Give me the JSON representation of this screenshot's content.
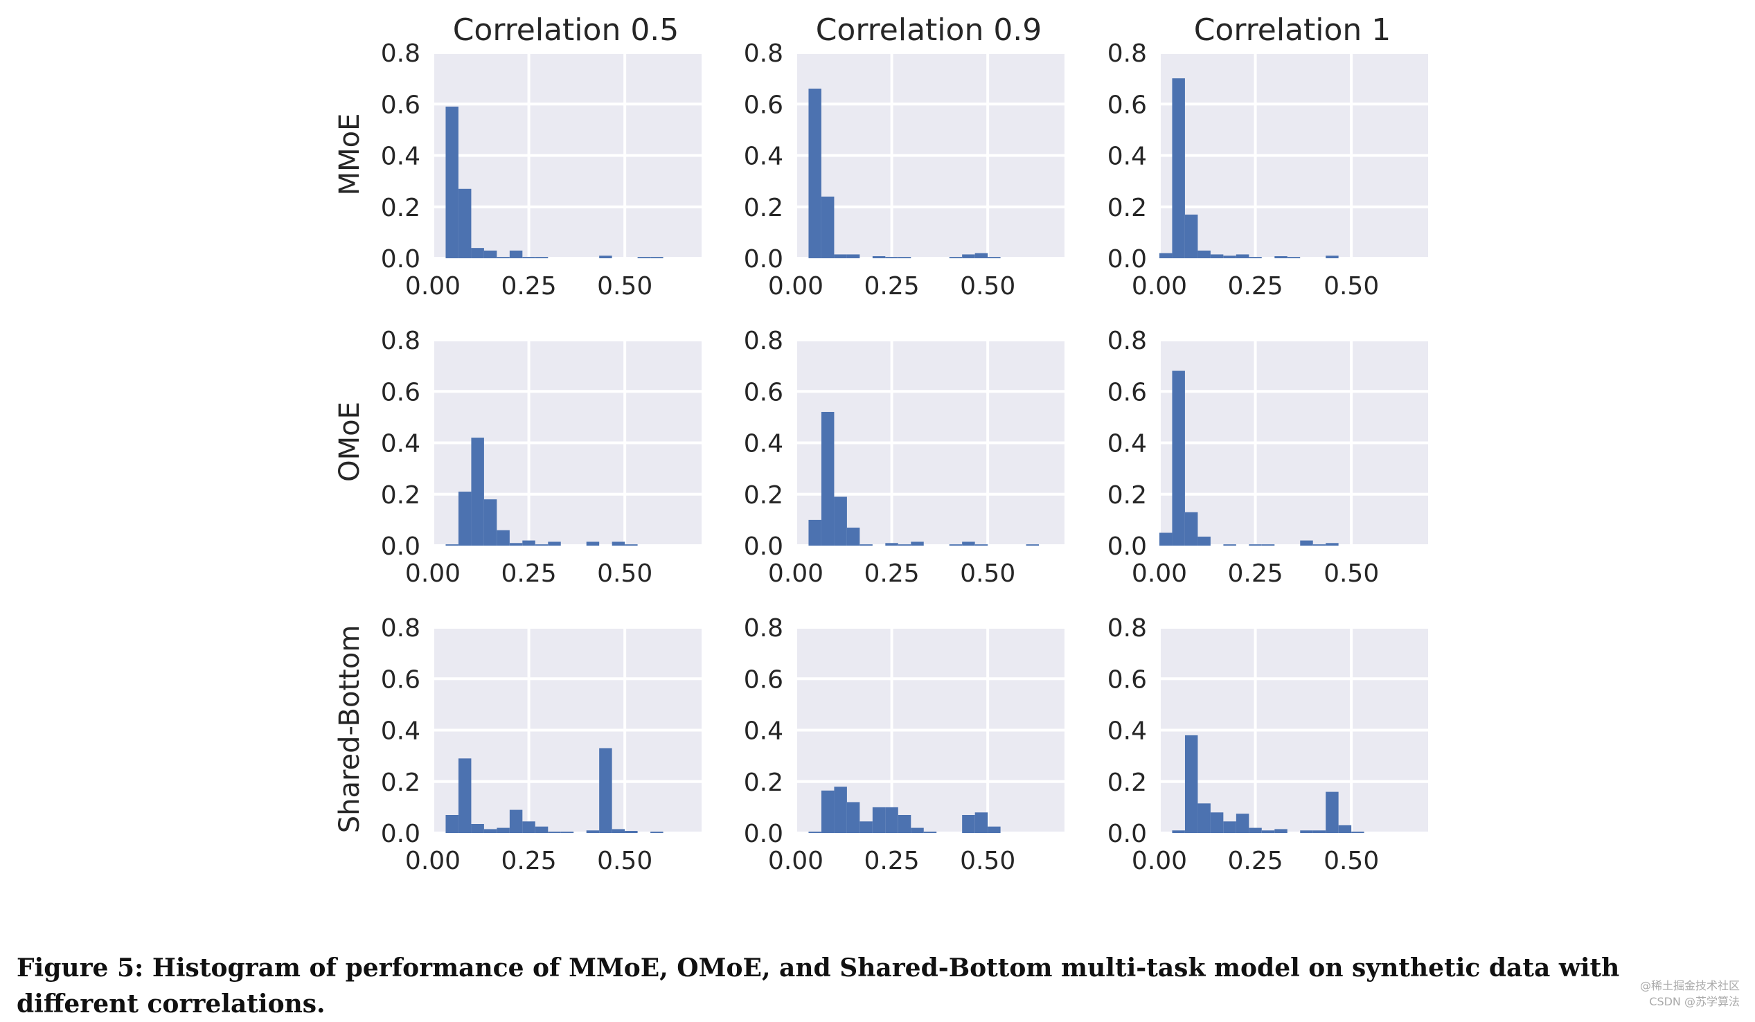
{
  "column_titles": [
    "Correlation 0.5",
    "Correlation 0.9",
    "Correlation 1"
  ],
  "row_labels": [
    "MMoE",
    "OMoE",
    "Shared-Bottom"
  ],
  "caption": "Figure 5: Histogram of performance of MMoE, OMoE, and Shared-Bottom multi-task model on synthetic data with different correlations.",
  "watermark": {
    "line1": "@稀土掘金技术社区",
    "line2": "CSDN @苏学算法"
  },
  "colors": {
    "bar": "#4c72b0",
    "panel_background": "#eaeaf2",
    "grid": "#ffffff",
    "text": "#262626"
  },
  "chart_data": [
    {
      "type": "bar",
      "row": "MMoE",
      "column": "Correlation 0.5",
      "xlim": [
        0,
        0.7
      ],
      "ylim": [
        0,
        0.8
      ],
      "x_ticks": [
        "0.00",
        "0.25",
        "0.50"
      ],
      "y_ticks": [
        "0.0",
        "0.2",
        "0.4",
        "0.6",
        "0.8"
      ],
      "grid": true,
      "bin_width": 0.0333,
      "x": [
        0.0333,
        0.0667,
        0.1,
        0.1333,
        0.1667,
        0.2,
        0.2333,
        0.2667,
        0.3,
        0.3333,
        0.3667,
        0.4,
        0.4333,
        0.4667,
        0.5,
        0.5333,
        0.5667,
        0.6
      ],
      "values": [
        0.59,
        0.27,
        0.04,
        0.03,
        0.005,
        0.03,
        0.005,
        0.005,
        0.0,
        0.0,
        0.0,
        0.0,
        0.01,
        0.0,
        0.0,
        0.005,
        0.005,
        0.0
      ]
    },
    {
      "type": "bar",
      "row": "MMoE",
      "column": "Correlation 0.9",
      "xlim": [
        0,
        0.7
      ],
      "ylim": [
        0,
        0.8
      ],
      "x_ticks": [
        "0.00",
        "0.25",
        "0.50"
      ],
      "y_ticks": [
        "0.0",
        "0.2",
        "0.4",
        "0.6",
        "0.8"
      ],
      "grid": true,
      "bin_width": 0.0333,
      "x": [
        0.0333,
        0.0667,
        0.1,
        0.1333,
        0.1667,
        0.2,
        0.2333,
        0.2667,
        0.3,
        0.3333,
        0.3667,
        0.4,
        0.4333,
        0.4667,
        0.5,
        0.5333
      ],
      "values": [
        0.66,
        0.24,
        0.015,
        0.015,
        0.0,
        0.008,
        0.005,
        0.005,
        0.0,
        0.0,
        0.0,
        0.005,
        0.015,
        0.02,
        0.005,
        0.0
      ]
    },
    {
      "type": "bar",
      "row": "MMoE",
      "column": "Correlation 1",
      "xlim": [
        0,
        0.7
      ],
      "ylim": [
        0,
        0.8
      ],
      "x_ticks": [
        "0.00",
        "0.25",
        "0.50"
      ],
      "y_ticks": [
        "0.0",
        "0.2",
        "0.4",
        "0.6",
        "0.8"
      ],
      "grid": true,
      "bin_width": 0.0333,
      "x": [
        0.0,
        0.0333,
        0.0667,
        0.1,
        0.1333,
        0.1667,
        0.2,
        0.2333,
        0.2667,
        0.3,
        0.3333,
        0.3667,
        0.4,
        0.4333,
        0.4667
      ],
      "values": [
        0.02,
        0.7,
        0.17,
        0.03,
        0.015,
        0.01,
        0.015,
        0.005,
        0.0,
        0.008,
        0.005,
        0.0,
        0.0,
        0.01,
        0.0
      ]
    },
    {
      "type": "bar",
      "row": "OMoE",
      "column": "Correlation 0.5",
      "xlim": [
        0,
        0.7
      ],
      "ylim": [
        0,
        0.8
      ],
      "x_ticks": [
        "0.00",
        "0.25",
        "0.50"
      ],
      "y_ticks": [
        "0.0",
        "0.2",
        "0.4",
        "0.6",
        "0.8"
      ],
      "grid": true,
      "bin_width": 0.0333,
      "x": [
        0.0333,
        0.0667,
        0.1,
        0.1333,
        0.1667,
        0.2,
        0.2333,
        0.2667,
        0.3,
        0.3333,
        0.3667,
        0.4,
        0.4333,
        0.4667,
        0.5,
        0.5333
      ],
      "values": [
        0.005,
        0.21,
        0.42,
        0.18,
        0.06,
        0.01,
        0.02,
        0.005,
        0.015,
        0.0,
        0.0,
        0.015,
        0.0,
        0.015,
        0.005,
        0.0
      ]
    },
    {
      "type": "bar",
      "row": "OMoE",
      "column": "Correlation 0.9",
      "xlim": [
        0,
        0.7
      ],
      "ylim": [
        0,
        0.8
      ],
      "x_ticks": [
        "0.00",
        "0.25",
        "0.50"
      ],
      "y_ticks": [
        "0.0",
        "0.2",
        "0.4",
        "0.6",
        "0.8"
      ],
      "grid": true,
      "bin_width": 0.0333,
      "x": [
        0.0333,
        0.0667,
        0.1,
        0.1333,
        0.1667,
        0.2,
        0.2333,
        0.2667,
        0.3,
        0.3333,
        0.3667,
        0.4,
        0.4333,
        0.4667,
        0.5,
        0.5333,
        0.5667,
        0.6
      ],
      "values": [
        0.1,
        0.52,
        0.19,
        0.07,
        0.005,
        0.0,
        0.01,
        0.005,
        0.015,
        0.0,
        0.0,
        0.005,
        0.015,
        0.005,
        0.0,
        0.0,
        0.0,
        0.005
      ]
    },
    {
      "type": "bar",
      "row": "OMoE",
      "column": "Correlation 1",
      "xlim": [
        0,
        0.7
      ],
      "ylim": [
        0,
        0.8
      ],
      "x_ticks": [
        "0.00",
        "0.25",
        "0.50"
      ],
      "y_ticks": [
        "0.0",
        "0.2",
        "0.4",
        "0.6",
        "0.8"
      ],
      "grid": true,
      "bin_width": 0.0333,
      "x": [
        0.0,
        0.0333,
        0.0667,
        0.1,
        0.1333,
        0.1667,
        0.2,
        0.2333,
        0.2667,
        0.3,
        0.3333,
        0.3667,
        0.4,
        0.4333,
        0.4667
      ],
      "values": [
        0.05,
        0.68,
        0.13,
        0.035,
        0.0,
        0.005,
        0.0,
        0.005,
        0.005,
        0.0,
        0.0,
        0.02,
        0.005,
        0.01,
        0.0
      ]
    },
    {
      "type": "bar",
      "row": "Shared-Bottom",
      "column": "Correlation 0.5",
      "xlim": [
        0,
        0.7
      ],
      "ylim": [
        0,
        0.8
      ],
      "x_ticks": [
        "0.00",
        "0.25",
        "0.50"
      ],
      "y_ticks": [
        "0.0",
        "0.2",
        "0.4",
        "0.6",
        "0.8"
      ],
      "grid": true,
      "bin_width": 0.0333,
      "x": [
        0.0333,
        0.0667,
        0.1,
        0.1333,
        0.1667,
        0.2,
        0.2333,
        0.2667,
        0.3,
        0.3333,
        0.3667,
        0.4,
        0.4333,
        0.4667,
        0.5,
        0.5333,
        0.5667,
        0.6
      ],
      "values": [
        0.07,
        0.29,
        0.035,
        0.015,
        0.02,
        0.09,
        0.045,
        0.025,
        0.005,
        0.005,
        0.0,
        0.01,
        0.33,
        0.015,
        0.008,
        0.0,
        0.005,
        0.0
      ]
    },
    {
      "type": "bar",
      "row": "Shared-Bottom",
      "column": "Correlation 0.9",
      "xlim": [
        0,
        0.7
      ],
      "ylim": [
        0,
        0.8
      ],
      "x_ticks": [
        "0.00",
        "0.25",
        "0.50"
      ],
      "y_ticks": [
        "0.0",
        "0.2",
        "0.4",
        "0.6",
        "0.8"
      ],
      "grid": true,
      "bin_width": 0.0333,
      "x": [
        0.0333,
        0.0667,
        0.1,
        0.1333,
        0.1667,
        0.2,
        0.2333,
        0.2667,
        0.3,
        0.3333,
        0.3667,
        0.4,
        0.4333,
        0.4667,
        0.5,
        0.5333,
        0.5667,
        0.6
      ],
      "values": [
        0.005,
        0.165,
        0.18,
        0.12,
        0.045,
        0.1,
        0.1,
        0.07,
        0.02,
        0.005,
        0.0,
        0.0,
        0.07,
        0.08,
        0.025,
        0.0,
        0.0,
        0.0
      ]
    },
    {
      "type": "bar",
      "row": "Shared-Bottom",
      "column": "Correlation 1",
      "xlim": [
        0,
        0.7
      ],
      "ylim": [
        0,
        0.8
      ],
      "x_ticks": [
        "0.00",
        "0.25",
        "0.50"
      ],
      "y_ticks": [
        "0.0",
        "0.2",
        "0.4",
        "0.6",
        "0.8"
      ],
      "grid": true,
      "bin_width": 0.0333,
      "x": [
        0.0333,
        0.0667,
        0.1,
        0.1333,
        0.1667,
        0.2,
        0.2333,
        0.2667,
        0.3,
        0.3333,
        0.3667,
        0.4,
        0.4333,
        0.4667,
        0.5,
        0.5333
      ],
      "values": [
        0.01,
        0.38,
        0.115,
        0.08,
        0.045,
        0.075,
        0.02,
        0.01,
        0.015,
        0.0,
        0.01,
        0.01,
        0.16,
        0.03,
        0.005,
        0.0
      ]
    }
  ]
}
